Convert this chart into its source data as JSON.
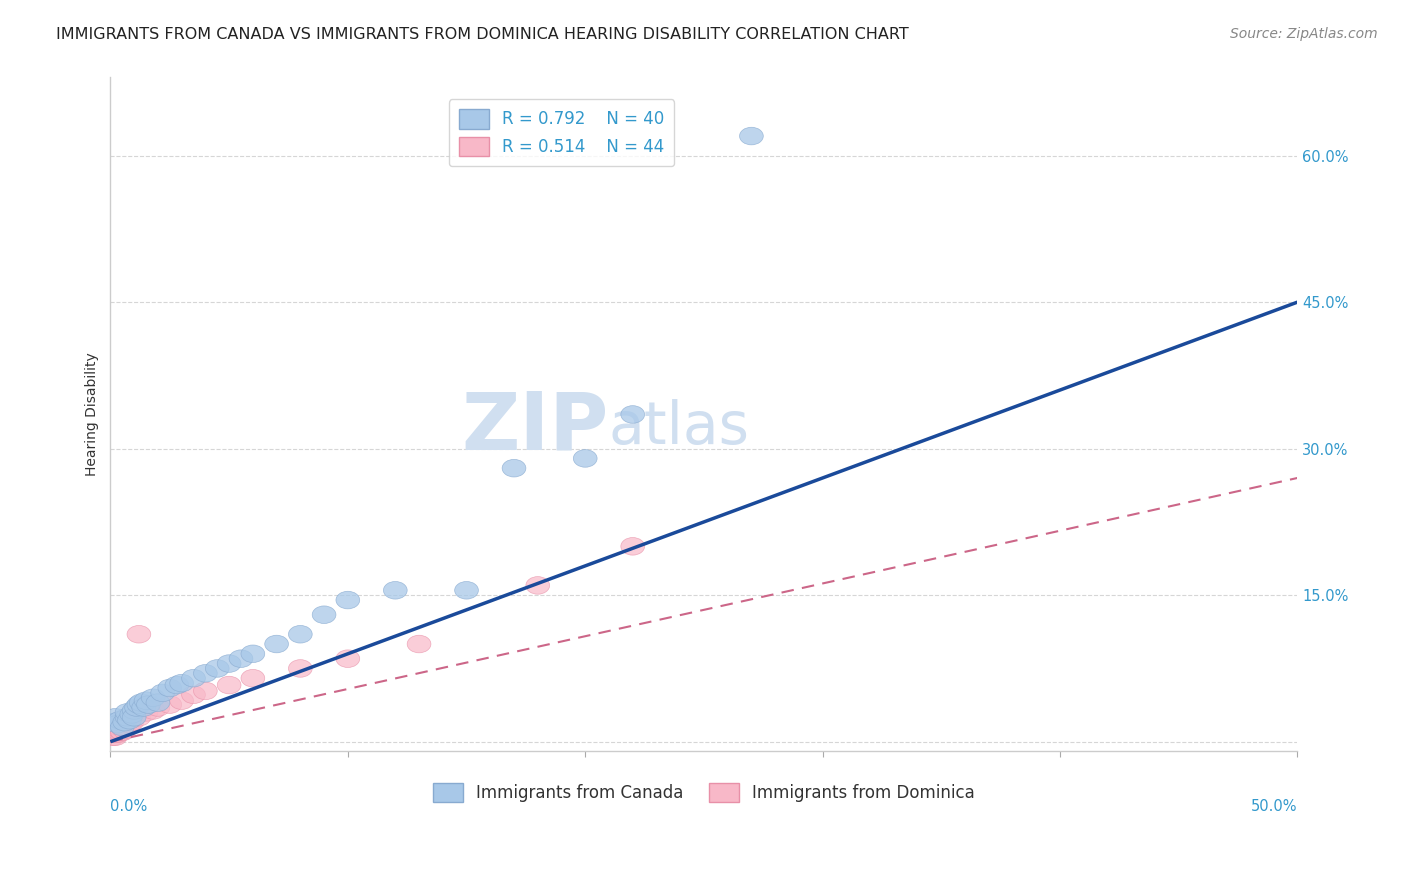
{
  "title": "IMMIGRANTS FROM CANADA VS IMMIGRANTS FROM DOMINICA HEARING DISABILITY CORRELATION CHART",
  "source": "Source: ZipAtlas.com",
  "ylabel": "Hearing Disability",
  "yticks": [
    0.0,
    0.15,
    0.3,
    0.45,
    0.6
  ],
  "ytick_labels": [
    "",
    "15.0%",
    "30.0%",
    "45.0%",
    "60.0%"
  ],
  "xlim": [
    0.0,
    0.5
  ],
  "ylim": [
    -0.01,
    0.68
  ],
  "canada_R": 0.792,
  "canada_N": 40,
  "dominica_R": 0.514,
  "dominica_N": 44,
  "canada_color": "#a8c8e8",
  "canada_edge_color": "#88aad0",
  "canada_line_color": "#1a4a9a",
  "dominica_color": "#f8b8c8",
  "dominica_edge_color": "#e890a8",
  "dominica_line_color": "#cc6688",
  "watermark_zip": "ZIP",
  "watermark_atlas": "atlas",
  "watermark_color": "#d0dff0",
  "canada_points": [
    [
      0.001,
      0.02
    ],
    [
      0.002,
      0.025
    ],
    [
      0.003,
      0.018
    ],
    [
      0.004,
      0.022
    ],
    [
      0.005,
      0.015
    ],
    [
      0.006,
      0.02
    ],
    [
      0.007,
      0.025
    ],
    [
      0.007,
      0.03
    ],
    [
      0.008,
      0.022
    ],
    [
      0.009,
      0.028
    ],
    [
      0.01,
      0.032
    ],
    [
      0.01,
      0.025
    ],
    [
      0.011,
      0.035
    ],
    [
      0.012,
      0.038
    ],
    [
      0.013,
      0.04
    ],
    [
      0.014,
      0.035
    ],
    [
      0.015,
      0.042
    ],
    [
      0.016,
      0.038
    ],
    [
      0.018,
      0.045
    ],
    [
      0.02,
      0.04
    ],
    [
      0.022,
      0.05
    ],
    [
      0.025,
      0.055
    ],
    [
      0.028,
      0.058
    ],
    [
      0.03,
      0.06
    ],
    [
      0.035,
      0.065
    ],
    [
      0.04,
      0.07
    ],
    [
      0.045,
      0.075
    ],
    [
      0.05,
      0.08
    ],
    [
      0.055,
      0.085
    ],
    [
      0.06,
      0.09
    ],
    [
      0.07,
      0.1
    ],
    [
      0.08,
      0.11
    ],
    [
      0.09,
      0.13
    ],
    [
      0.1,
      0.145
    ],
    [
      0.12,
      0.155
    ],
    [
      0.15,
      0.155
    ],
    [
      0.17,
      0.28
    ],
    [
      0.2,
      0.29
    ],
    [
      0.22,
      0.335
    ],
    [
      0.27,
      0.62
    ]
  ],
  "dominica_points": [
    [
      0.001,
      0.005
    ],
    [
      0.001,
      0.008
    ],
    [
      0.001,
      0.01
    ],
    [
      0.002,
      0.005
    ],
    [
      0.002,
      0.008
    ],
    [
      0.002,
      0.012
    ],
    [
      0.002,
      0.015
    ],
    [
      0.003,
      0.008
    ],
    [
      0.003,
      0.01
    ],
    [
      0.003,
      0.015
    ],
    [
      0.003,
      0.018
    ],
    [
      0.004,
      0.01
    ],
    [
      0.004,
      0.012
    ],
    [
      0.004,
      0.015
    ],
    [
      0.004,
      0.02
    ],
    [
      0.005,
      0.01
    ],
    [
      0.005,
      0.015
    ],
    [
      0.005,
      0.018
    ],
    [
      0.005,
      0.02
    ],
    [
      0.006,
      0.012
    ],
    [
      0.006,
      0.015
    ],
    [
      0.006,
      0.018
    ],
    [
      0.007,
      0.015
    ],
    [
      0.007,
      0.02
    ],
    [
      0.008,
      0.018
    ],
    [
      0.008,
      0.022
    ],
    [
      0.009,
      0.02
    ],
    [
      0.01,
      0.025
    ],
    [
      0.012,
      0.025
    ],
    [
      0.012,
      0.11
    ],
    [
      0.015,
      0.03
    ],
    [
      0.018,
      0.032
    ],
    [
      0.02,
      0.035
    ],
    [
      0.025,
      0.038
    ],
    [
      0.03,
      0.042
    ],
    [
      0.035,
      0.048
    ],
    [
      0.04,
      0.052
    ],
    [
      0.05,
      0.058
    ],
    [
      0.06,
      0.065
    ],
    [
      0.08,
      0.075
    ],
    [
      0.1,
      0.085
    ],
    [
      0.13,
      0.1
    ],
    [
      0.18,
      0.16
    ],
    [
      0.22,
      0.2
    ]
  ],
  "canada_line_x": [
    0.0,
    0.5
  ],
  "canada_line_y": [
    0.0,
    0.45
  ],
  "dominica_line_x": [
    0.0,
    0.5
  ],
  "dominica_line_y": [
    0.0,
    0.27
  ],
  "title_fontsize": 11.5,
  "axis_label_fontsize": 10,
  "tick_fontsize": 10.5,
  "legend_fontsize": 12,
  "source_fontsize": 10
}
